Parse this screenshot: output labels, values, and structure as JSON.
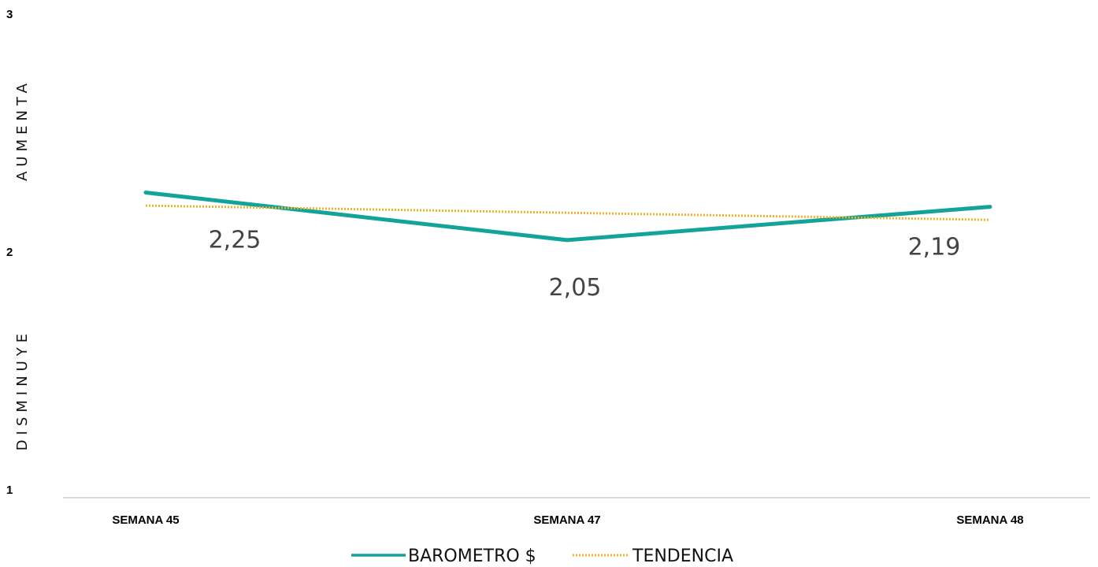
{
  "chart_data": {
    "type": "line",
    "categories": [
      "SEMANA 45",
      "SEMANA 47",
      "SEMANA 48"
    ],
    "series": [
      {
        "name": "BAROMETRO $",
        "values": [
          2.25,
          2.05,
          2.19
        ],
        "color": "#14A398",
        "style": "solid"
      },
      {
        "name": "TENDENCIA",
        "values": [
          2.195,
          2.165,
          2.135
        ],
        "color": "#F0B12A",
        "style": "dotted"
      }
    ],
    "data_labels": [
      "2,25",
      "2,05",
      "2,19"
    ],
    "ylim": [
      1,
      3
    ],
    "yticks": [
      "1",
      "2",
      "3"
    ],
    "ylabel_upper": "AUMENTA",
    "ylabel_lower": "DISMINUYE",
    "grid": false,
    "legend_position": "bottom"
  }
}
